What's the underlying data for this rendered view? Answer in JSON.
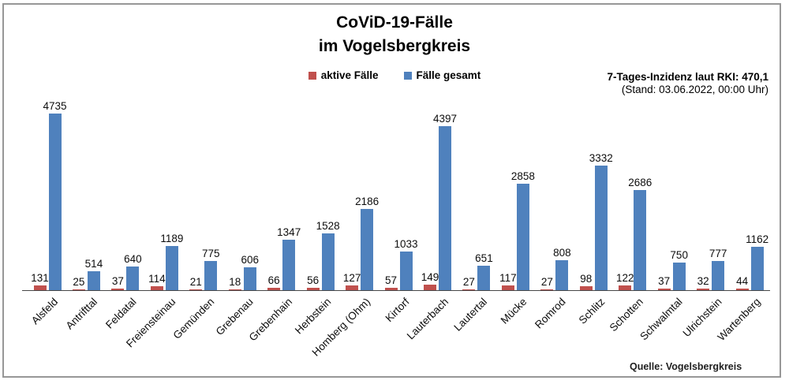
{
  "title": {
    "line1": "CoViD-19-Fälle",
    "line2": "im Vogelsbergkreis"
  },
  "incidence": {
    "line1": "7-Tages-Inzidenz laut RKI: 470,1",
    "line2": "(Stand: 03.06.2022, 00:00 Uhr)"
  },
  "source": "Quelle: Vogelsbergkreis",
  "chart_data": {
    "type": "bar",
    "title": "CoViD-19-Fälle im Vogelsbergkreis",
    "categories": [
      "Alsfeld",
      "Antrifttal",
      "Feldatal",
      "Freiensteinau",
      "Gemünden",
      "Grebenau",
      "Grebenhain",
      "Herbstein",
      "Homberg (Ohm)",
      "Kirtorf",
      "Lauterbach",
      "Lautertal",
      "Mücke",
      "Romrod",
      "Schlitz",
      "Schotten",
      "Schwalmtal",
      "Ulrichstein",
      "Wartenberg"
    ],
    "series": [
      {
        "name": "aktive Fälle",
        "color": "#C0504D",
        "values": [
          131,
          25,
          37,
          114,
          21,
          18,
          66,
          56,
          127,
          57,
          149,
          27,
          117,
          27,
          98,
          122,
          37,
          32,
          44
        ]
      },
      {
        "name": "Fälle gesamt",
        "color": "#4F81BD",
        "values": [
          4735,
          514,
          640,
          1189,
          775,
          606,
          1347,
          1528,
          2186,
          1033,
          4397,
          651,
          2858,
          808,
          3332,
          2686,
          750,
          777,
          1162
        ]
      }
    ],
    "ylim": [
      0,
      4735
    ],
    "grid": false,
    "legend_position": "top-center",
    "data_labels": true,
    "x_label_rotation": -45
  }
}
